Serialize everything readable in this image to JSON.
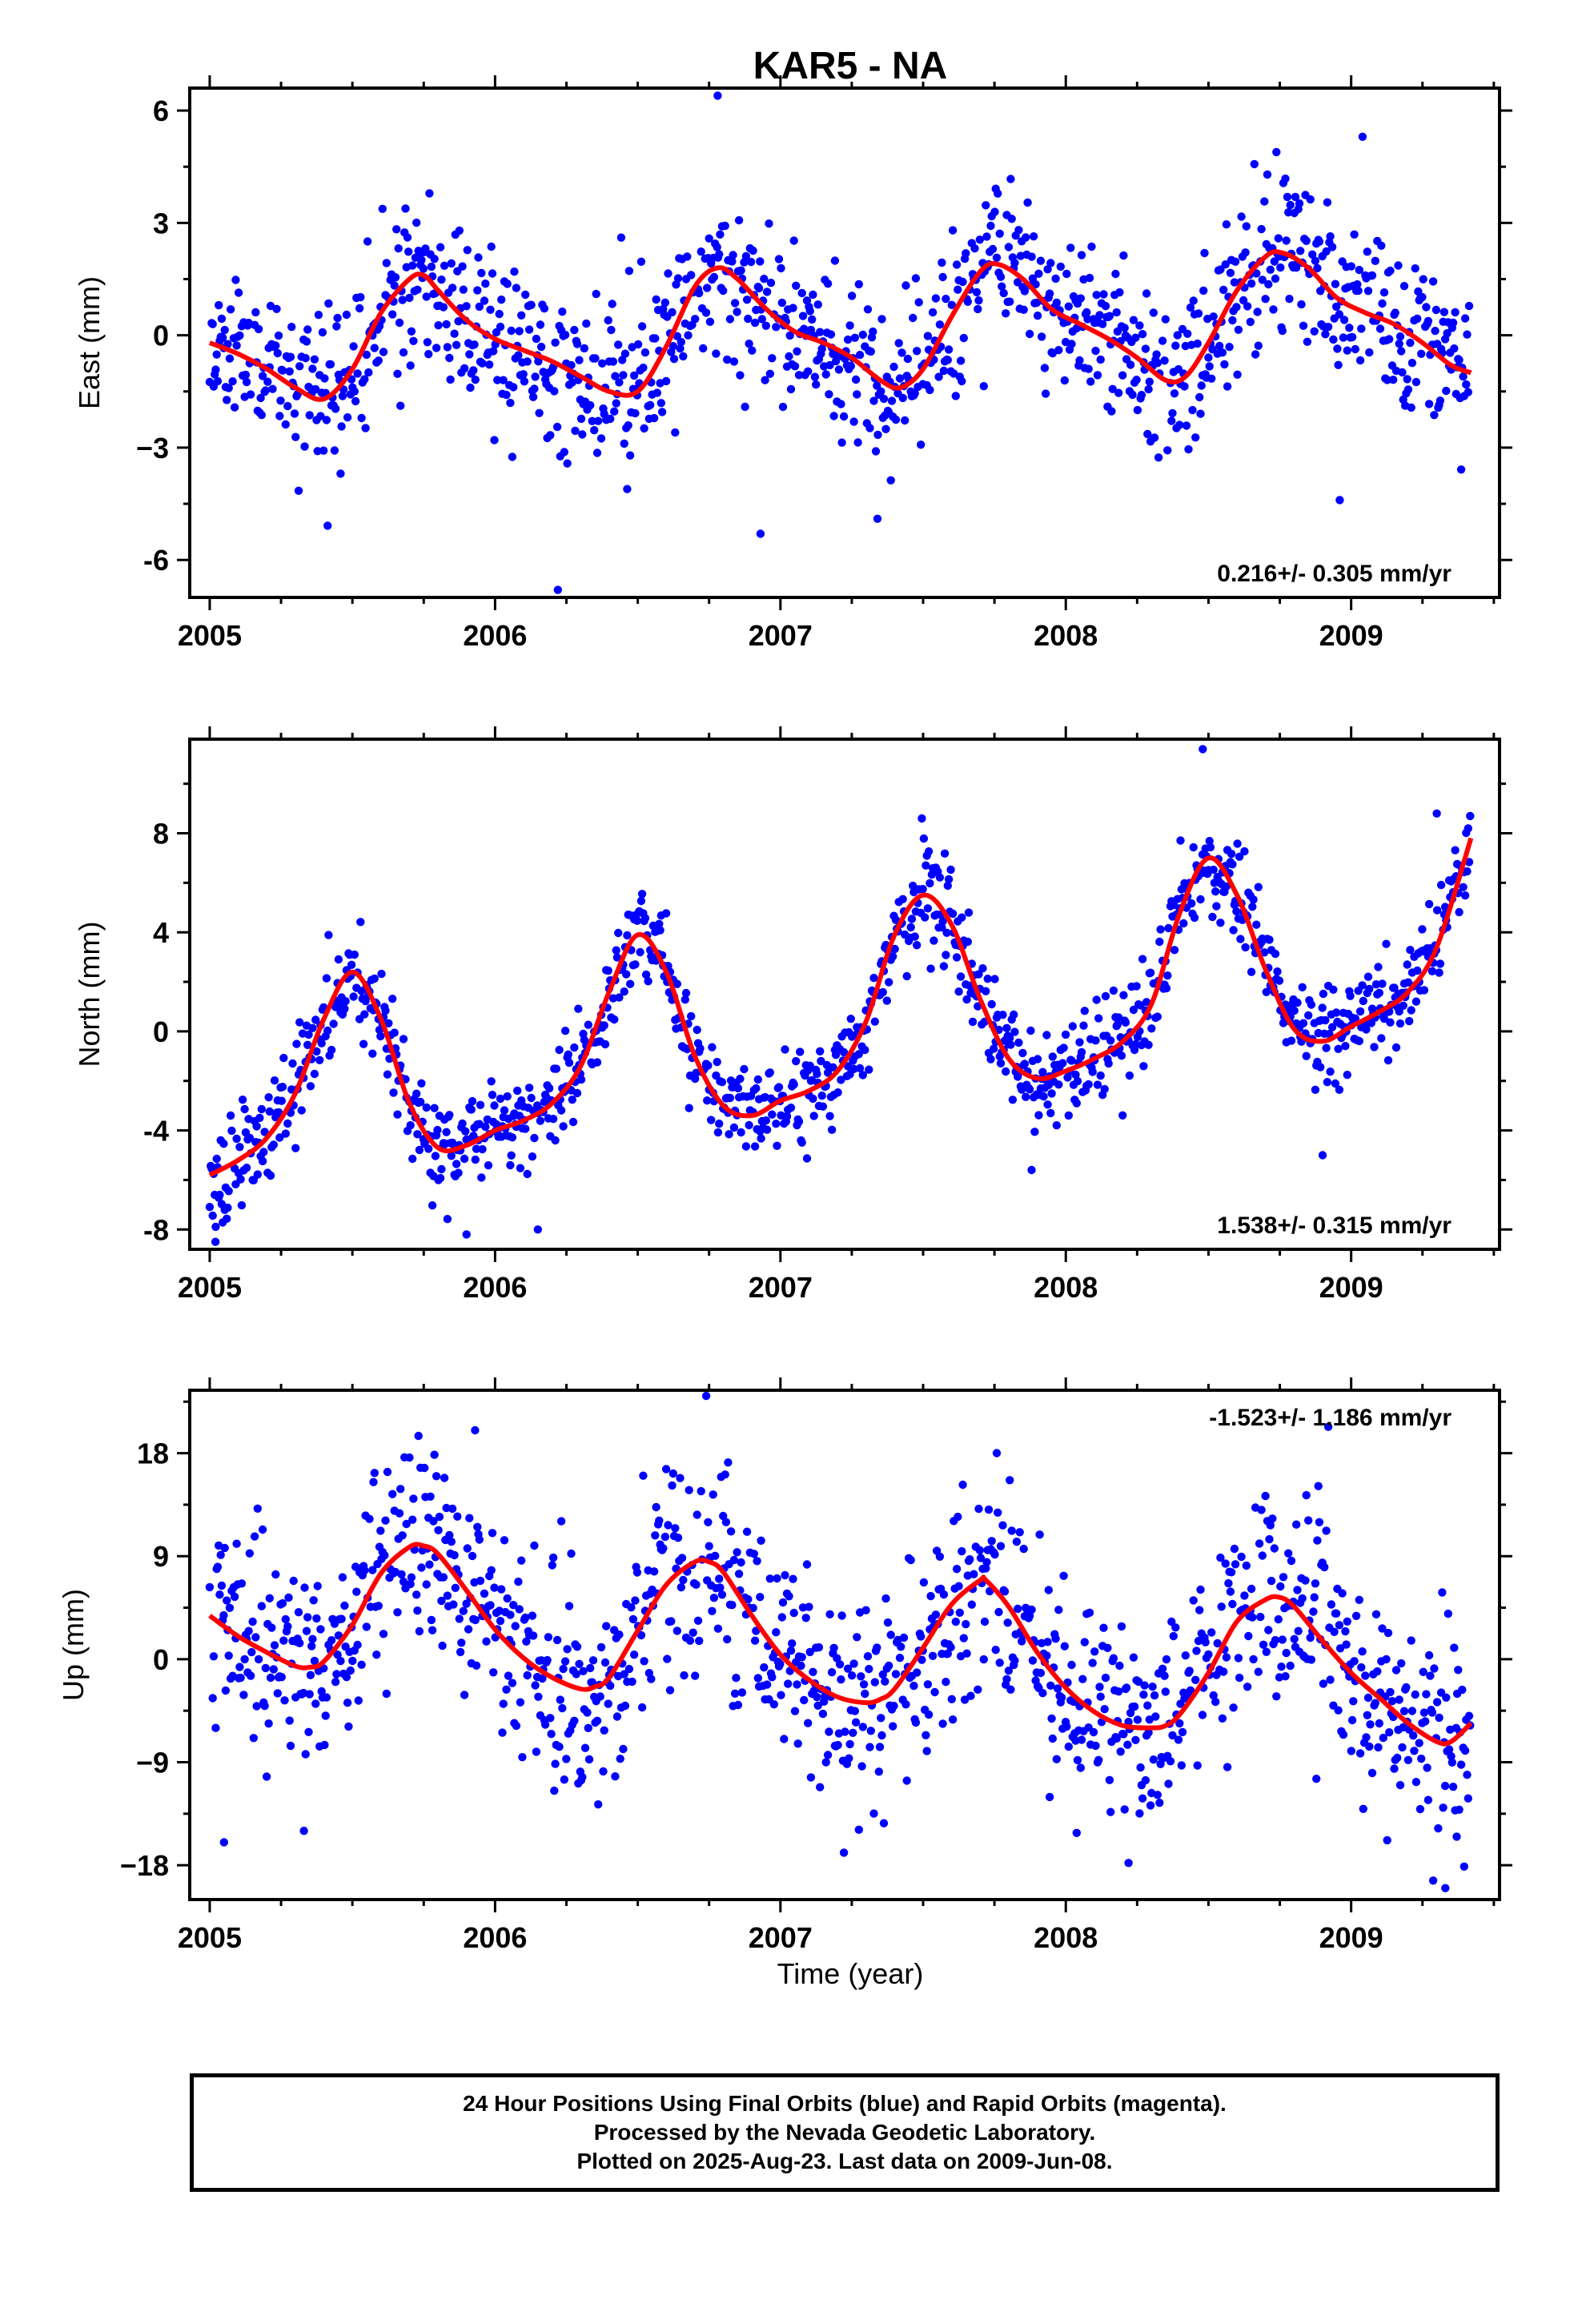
{
  "title": "KAR5 - NA",
  "xlabel": "Time (year)",
  "footer": {
    "line1": "24 Hour Positions Using Final Orbits (blue) and Rapid Orbits (magenta).",
    "line2": "Processed by the Nevada Geodetic Laboratory.",
    "line3": "Plotted on 2025-Aug-23. Last data on 2009-Jun-08."
  },
  "colors": {
    "points": "#0000ff",
    "fit": "#ff0000",
    "frame": "#000000"
  },
  "chart_data": [
    {
      "type": "scatter",
      "ylabel": "East (mm)",
      "rate_label": "0.216+/- 0.305 mm/yr",
      "rate_position": "bottom-right",
      "xlim": [
        2004.93,
        2009.52
      ],
      "ylim": [
        -7.0,
        6.6
      ],
      "xticks": [
        2005,
        2006,
        2007,
        2008,
        2009
      ],
      "xtick_labels": [
        "2005",
        "2006",
        "2007",
        "2008",
        "2009"
      ],
      "yticks": [
        -6,
        -3,
        0,
        3,
        6
      ],
      "ytick_labels": [
        "-6",
        "−3",
        "0",
        "3",
        "6"
      ],
      "grid": false,
      "fit_line": {
        "name": "",
        "x": [
          2005.0,
          2005.1,
          2005.2,
          2005.3,
          2005.4,
          2005.5,
          2005.6,
          2005.7,
          2005.75,
          2005.8,
          2005.9,
          2006.0,
          2006.1,
          2006.2,
          2006.3,
          2006.4,
          2006.5,
          2006.6,
          2006.7,
          2006.78,
          2006.85,
          2006.95,
          2007.05,
          2007.15,
          2007.25,
          2007.35,
          2007.42,
          2007.5,
          2007.6,
          2007.7,
          2007.76,
          2007.85,
          2007.95,
          2008.05,
          2008.15,
          2008.25,
          2008.35,
          2008.42,
          2008.5,
          2008.6,
          2008.7,
          2008.76,
          2008.85,
          2008.95,
          2009.05,
          2009.15,
          2009.25,
          2009.35,
          2009.42
        ],
        "y": [
          -0.2,
          -0.5,
          -0.9,
          -1.4,
          -1.7,
          -0.9,
          0.6,
          1.5,
          1.6,
          1.2,
          0.4,
          -0.1,
          -0.4,
          -0.7,
          -1.1,
          -1.5,
          -1.5,
          -0.3,
          1.3,
          1.8,
          1.5,
          0.7,
          0.1,
          -0.2,
          -0.6,
          -1.2,
          -1.4,
          -0.9,
          0.5,
          1.7,
          1.9,
          1.5,
          0.7,
          0.3,
          -0.1,
          -0.6,
          -1.2,
          -1.1,
          -0.2,
          1.2,
          2.1,
          2.2,
          1.8,
          1.0,
          0.6,
          0.3,
          -0.2,
          -0.8,
          -1.0
        ]
      },
      "seed": 11,
      "noise": 1.1,
      "outliers": [
        [
          2006.22,
          -6.8
        ],
        [
          2006.93,
          -5.3
        ],
        [
          2007.34,
          -4.9
        ],
        [
          2006.78,
          6.4
        ],
        [
          2009.04,
          5.3
        ],
        [
          2008.96,
          -4.4
        ]
      ]
    },
    {
      "type": "scatter",
      "ylabel": "North (mm)",
      "rate_label": "1.538+/- 0.315 mm/yr",
      "rate_position": "bottom-right",
      "xlim": [
        2004.93,
        2009.52
      ],
      "ylim": [
        -8.8,
        11.8
      ],
      "xticks": [
        2005,
        2006,
        2007,
        2008,
        2009
      ],
      "xtick_labels": [
        "2005",
        "2006",
        "2007",
        "2008",
        "2009"
      ],
      "yticks": [
        -8,
        -4,
        0,
        4,
        8
      ],
      "ytick_labels": [
        "-8",
        "-4",
        "0",
        "4",
        "8"
      ],
      "grid": false,
      "fit_line": {
        "name": "",
        "x": [
          2005.0,
          2005.1,
          2005.2,
          2005.3,
          2005.4,
          2005.5,
          2005.6,
          2005.7,
          2005.8,
          2005.9,
          2006.0,
          2006.1,
          2006.2,
          2006.3,
          2006.4,
          2006.5,
          2006.6,
          2006.7,
          2006.8,
          2006.9,
          2007.0,
          2007.1,
          2007.2,
          2007.3,
          2007.4,
          2007.5,
          2007.6,
          2007.7,
          2007.8,
          2007.9,
          2008.0,
          2008.1,
          2008.2,
          2008.3,
          2008.4,
          2008.5,
          2008.6,
          2008.7,
          2008.8,
          2008.9,
          2009.0,
          2009.1,
          2009.2,
          2009.3,
          2009.42
        ],
        "y": [
          -5.8,
          -5.2,
          -4.3,
          -2.5,
          0.5,
          2.4,
          0.5,
          -2.9,
          -4.7,
          -4.6,
          -4.0,
          -3.6,
          -2.9,
          -1.4,
          1.6,
          3.9,
          2.4,
          -1.0,
          -3.0,
          -3.4,
          -2.8,
          -2.4,
          -1.6,
          0.4,
          3.9,
          5.5,
          4.3,
          1.3,
          -1.1,
          -1.9,
          -1.6,
          -1.1,
          -0.4,
          1.1,
          4.8,
          7.0,
          5.5,
          2.5,
          0.1,
          -0.4,
          0.2,
          0.8,
          1.6,
          3.4,
          7.8
        ]
      },
      "seed": 23,
      "noise": 1.0,
      "outliers": [
        [
          2005.02,
          -8.5
        ],
        [
          2005.9,
          -8.2
        ],
        [
          2006.15,
          -8.0
        ],
        [
          2007.88,
          -5.6
        ],
        [
          2008.48,
          11.4
        ],
        [
          2008.9,
          -5.0
        ],
        [
          2009.3,
          8.8
        ]
      ]
    },
    {
      "type": "scatter",
      "ylabel": "Up (mm)",
      "rate_label": "-1.523+/- 1.186 mm/yr",
      "rate_position": "top-right",
      "xlim": [
        2004.93,
        2009.52
      ],
      "ylim": [
        -21.0,
        23.5
      ],
      "xticks": [
        2005,
        2006,
        2007,
        2008,
        2009
      ],
      "xtick_labels": [
        "2005",
        "2006",
        "2007",
        "2008",
        "2009"
      ],
      "yticks": [
        -18,
        -9,
        0,
        9,
        18
      ],
      "ytick_labels": [
        "−18",
        "−9",
        "0",
        "9",
        "18"
      ],
      "grid": false,
      "fit_line": {
        "name": "",
        "x": [
          2005.0,
          2005.1,
          2005.2,
          2005.3,
          2005.35,
          2005.4,
          2005.5,
          2005.6,
          2005.7,
          2005.75,
          2005.8,
          2005.9,
          2006.0,
          2006.1,
          2006.2,
          2006.3,
          2006.35,
          2006.4,
          2006.5,
          2006.6,
          2006.7,
          2006.75,
          2006.8,
          2006.9,
          2007.0,
          2007.1,
          2007.2,
          2007.3,
          2007.35,
          2007.4,
          2007.5,
          2007.6,
          2007.7,
          2007.72,
          2007.8,
          2007.9,
          2008.0,
          2008.1,
          2008.2,
          2008.3,
          2008.35,
          2008.4,
          2008.5,
          2008.6,
          2008.7,
          2008.75,
          2008.8,
          2008.9,
          2009.0,
          2009.1,
          2009.2,
          2009.3,
          2009.35,
          2009.42
        ],
        "y": [
          3.8,
          2.0,
          0.6,
          -0.6,
          -0.7,
          -0.2,
          3.0,
          7.5,
          9.8,
          9.9,
          9.2,
          6.0,
          2.6,
          0.1,
          -1.6,
          -2.6,
          -2.4,
          -1.6,
          2.5,
          6.5,
          8.5,
          8.5,
          7.6,
          3.8,
          0.4,
          -1.8,
          -3.3,
          -3.8,
          -3.5,
          -2.6,
          1.0,
          4.8,
          6.9,
          6.9,
          4.6,
          0.6,
          -2.5,
          -4.6,
          -5.8,
          -6.0,
          -5.8,
          -4.8,
          -1.2,
          3.3,
          5.2,
          5.4,
          4.6,
          1.6,
          -1.2,
          -3.4,
          -5.6,
          -7.2,
          -7.2,
          -5.6
        ]
      },
      "seed": 37,
      "noise": 4.6,
      "outliers": [
        [
          2005.05,
          -16
        ],
        [
          2005.93,
          20.0
        ],
        [
          2006.74,
          23.0
        ],
        [
          2008.22,
          -17.8
        ],
        [
          2008.92,
          20.3
        ],
        [
          2009.33,
          -20.0
        ],
        [
          2009.37,
          -15.5
        ],
        [
          2005.33,
          -15
        ]
      ]
    }
  ]
}
